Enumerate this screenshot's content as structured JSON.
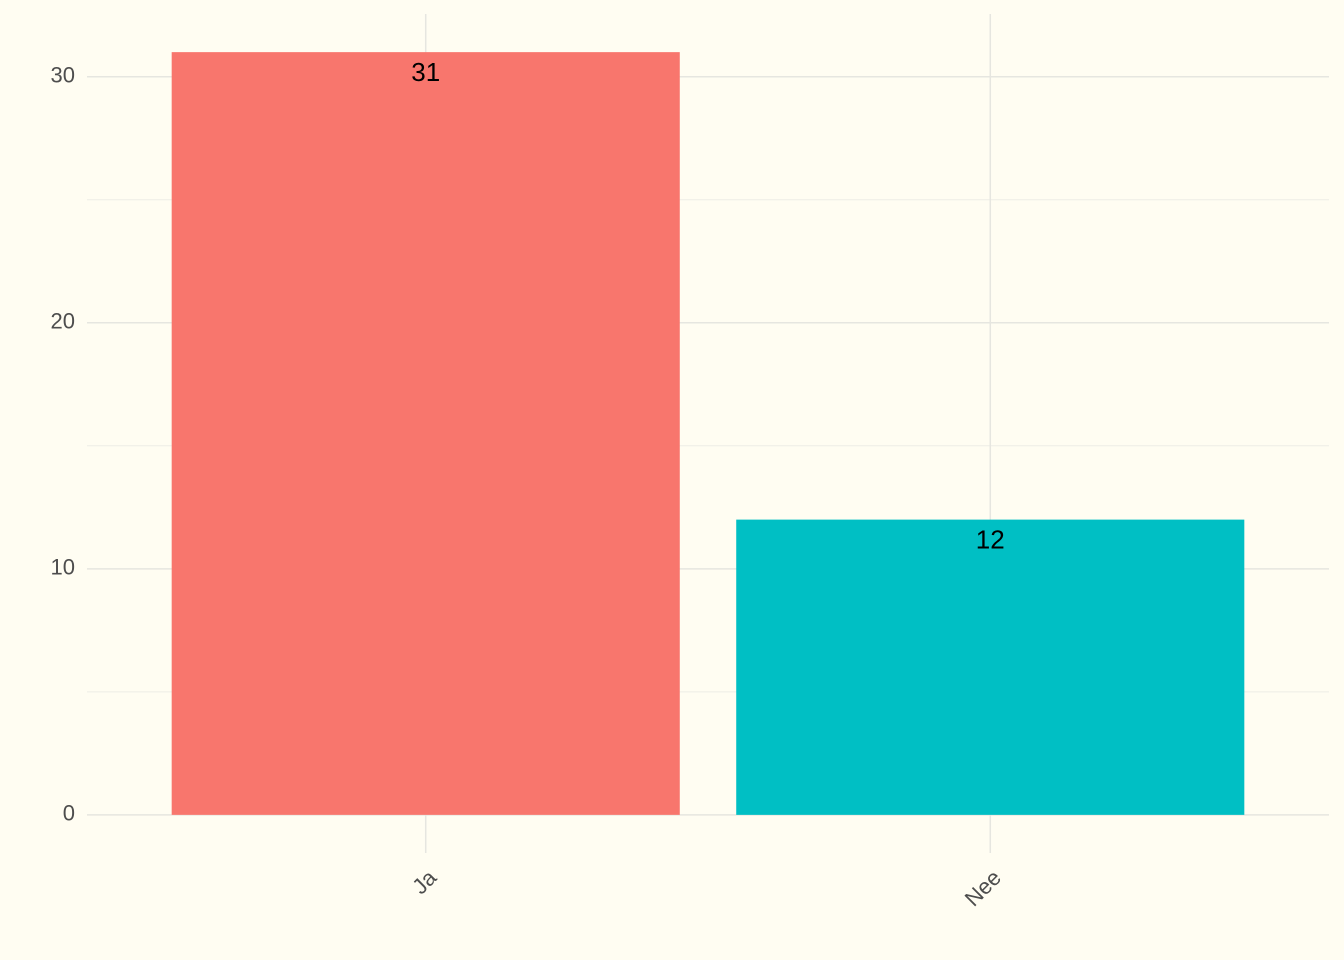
{
  "chart_data": {
    "type": "bar",
    "categories": [
      "Ja",
      "Nee"
    ],
    "values": [
      31,
      12
    ],
    "colors": [
      "#f8766d",
      "#00bfc4"
    ],
    "ylim": [
      -1.55,
      32.55
    ],
    "yticks": [
      0,
      10,
      20,
      30
    ],
    "minor_yticks": [
      5,
      15,
      25
    ],
    "grid": true
  }
}
